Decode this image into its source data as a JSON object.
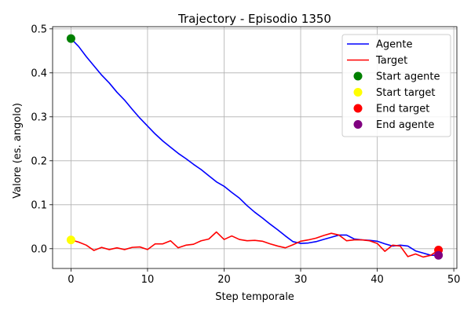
{
  "chart_data": {
    "type": "line",
    "title": "Trajectory - Episodio 1350",
    "xlabel": "Step temporale",
    "ylabel": "Valore (es. angolo)",
    "xlim": [
      -2.4,
      50.4
    ],
    "ylim": [
      -0.045,
      0.505
    ],
    "xticks": [
      0,
      10,
      20,
      30,
      40,
      50
    ],
    "yticks": [
      0.0,
      0.1,
      0.2,
      0.3,
      0.4,
      0.5
    ],
    "xtick_labels": [
      "0",
      "10",
      "20",
      "30",
      "40",
      "50"
    ],
    "ytick_labels": [
      "0.0",
      "0.1",
      "0.2",
      "0.3",
      "0.4",
      "0.5"
    ],
    "grid": true,
    "legend_position": "top-right",
    "x": [
      0,
      1,
      2,
      3,
      4,
      5,
      6,
      7,
      8,
      9,
      10,
      11,
      12,
      13,
      14,
      15,
      16,
      17,
      18,
      19,
      20,
      21,
      22,
      23,
      24,
      25,
      26,
      27,
      28,
      29,
      30,
      31,
      32,
      33,
      34,
      35,
      36,
      37,
      38,
      39,
      40,
      41,
      42,
      43,
      44,
      45,
      46,
      47,
      48
    ],
    "series": [
      {
        "name": "Agente",
        "color": "#0000ff",
        "values": [
          0.478,
          0.46,
          0.437,
          0.416,
          0.395,
          0.377,
          0.356,
          0.338,
          0.317,
          0.297,
          0.279,
          0.261,
          0.245,
          0.231,
          0.217,
          0.205,
          0.192,
          0.18,
          0.166,
          0.152,
          0.142,
          0.128,
          0.115,
          0.098,
          0.083,
          0.07,
          0.056,
          0.043,
          0.029,
          0.016,
          0.012,
          0.013,
          0.016,
          0.021,
          0.026,
          0.031,
          0.031,
          0.022,
          0.02,
          0.019,
          0.017,
          0.011,
          0.006,
          0.008,
          0.006,
          -0.005,
          -0.01,
          -0.015,
          -0.015
        ]
      },
      {
        "name": "Target",
        "color": "#ff0000",
        "values": [
          0.02,
          0.015,
          0.008,
          -0.004,
          0.003,
          -0.002,
          0.002,
          -0.002,
          0.003,
          0.004,
          -0.002,
          0.011,
          0.011,
          0.018,
          0.002,
          0.008,
          0.01,
          0.018,
          0.022,
          0.038,
          0.021,
          0.029,
          0.021,
          0.018,
          0.019,
          0.017,
          0.011,
          0.006,
          0.002,
          0.009,
          0.017,
          0.02,
          0.024,
          0.03,
          0.035,
          0.031,
          0.018,
          0.02,
          0.02,
          0.018,
          0.012,
          -0.006,
          0.008,
          0.006,
          -0.018,
          -0.012,
          -0.019,
          -0.015,
          -0.003
        ]
      }
    ],
    "markers": [
      {
        "name": "Start agente",
        "x": 0,
        "y": 0.478,
        "color": "#008000"
      },
      {
        "name": "Start target",
        "x": 0,
        "y": 0.02,
        "color": "#ffff00"
      },
      {
        "name": "End target",
        "x": 48,
        "y": -0.003,
        "color": "#ff0000"
      },
      {
        "name": "End agente",
        "x": 48,
        "y": -0.015,
        "color": "#800080"
      }
    ]
  }
}
